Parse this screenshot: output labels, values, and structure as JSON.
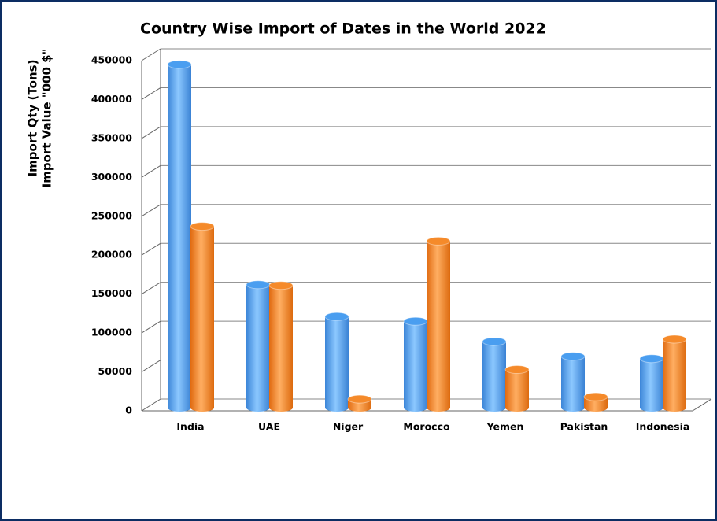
{
  "chart_data": {
    "type": "bar3d",
    "title": "Country Wise Import of Dates  in the World 2022",
    "ylabel": [
      "Import Qty (Tons)",
      "Import Value \"000 $\""
    ],
    "categories": [
      "India",
      "UAE",
      "Niger",
      "Morocco",
      "Yemen",
      "Pakistan",
      "Indonesia"
    ],
    "series": [
      {
        "color": "#4a9ef0",
        "values": [
          441000,
          158000,
          117000,
          111000,
          85000,
          66000,
          63000
        ]
      },
      {
        "color": "#f58a2a",
        "values": [
          233000,
          157000,
          11000,
          214000,
          49000,
          14000,
          88000
        ]
      }
    ],
    "ylim": [
      0,
      450000
    ],
    "yticks": [
      0,
      50000,
      100000,
      150000,
      200000,
      250000,
      300000,
      350000,
      400000,
      450000
    ],
    "grid": true
  }
}
